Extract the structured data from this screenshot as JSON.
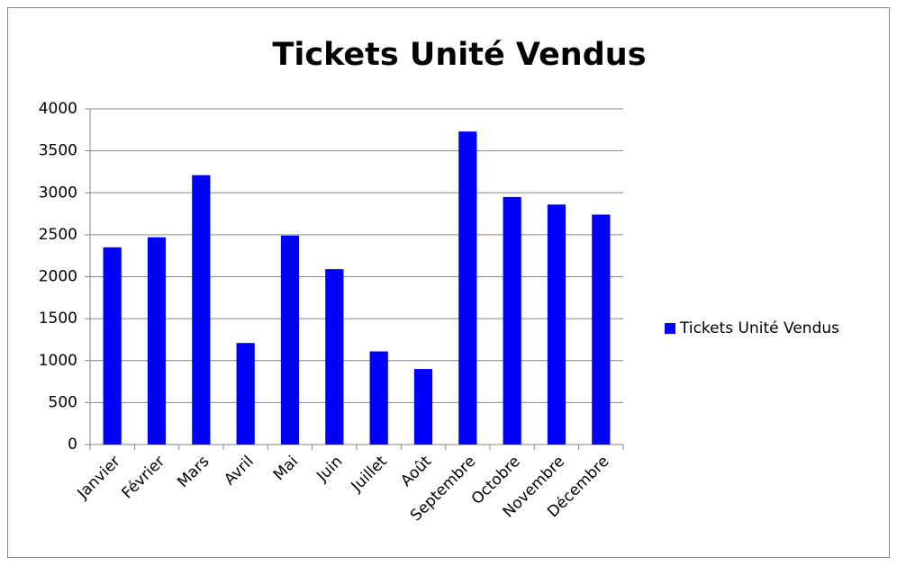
{
  "chart_data": {
    "type": "bar",
    "title": "Tickets Unité Vendus",
    "categories": [
      "Janvier",
      "Février",
      "Mars",
      "Avril",
      "Mai",
      "Juin",
      "Juillet",
      "Août",
      "Septembre",
      "Octobre",
      "Novembre",
      "Décembre"
    ],
    "series": [
      {
        "name": "Tickets Unité Vendus",
        "color": "#0000ff",
        "values": [
          2350,
          2470,
          3210,
          1210,
          2490,
          2090,
          1110,
          900,
          3730,
          2950,
          2860,
          2740
        ]
      }
    ],
    "ylim": [
      0,
      4000
    ],
    "yticks": [
      0,
      500,
      1000,
      1500,
      2000,
      2500,
      3000,
      3500,
      4000
    ],
    "grid": true,
    "legend": "right"
  }
}
